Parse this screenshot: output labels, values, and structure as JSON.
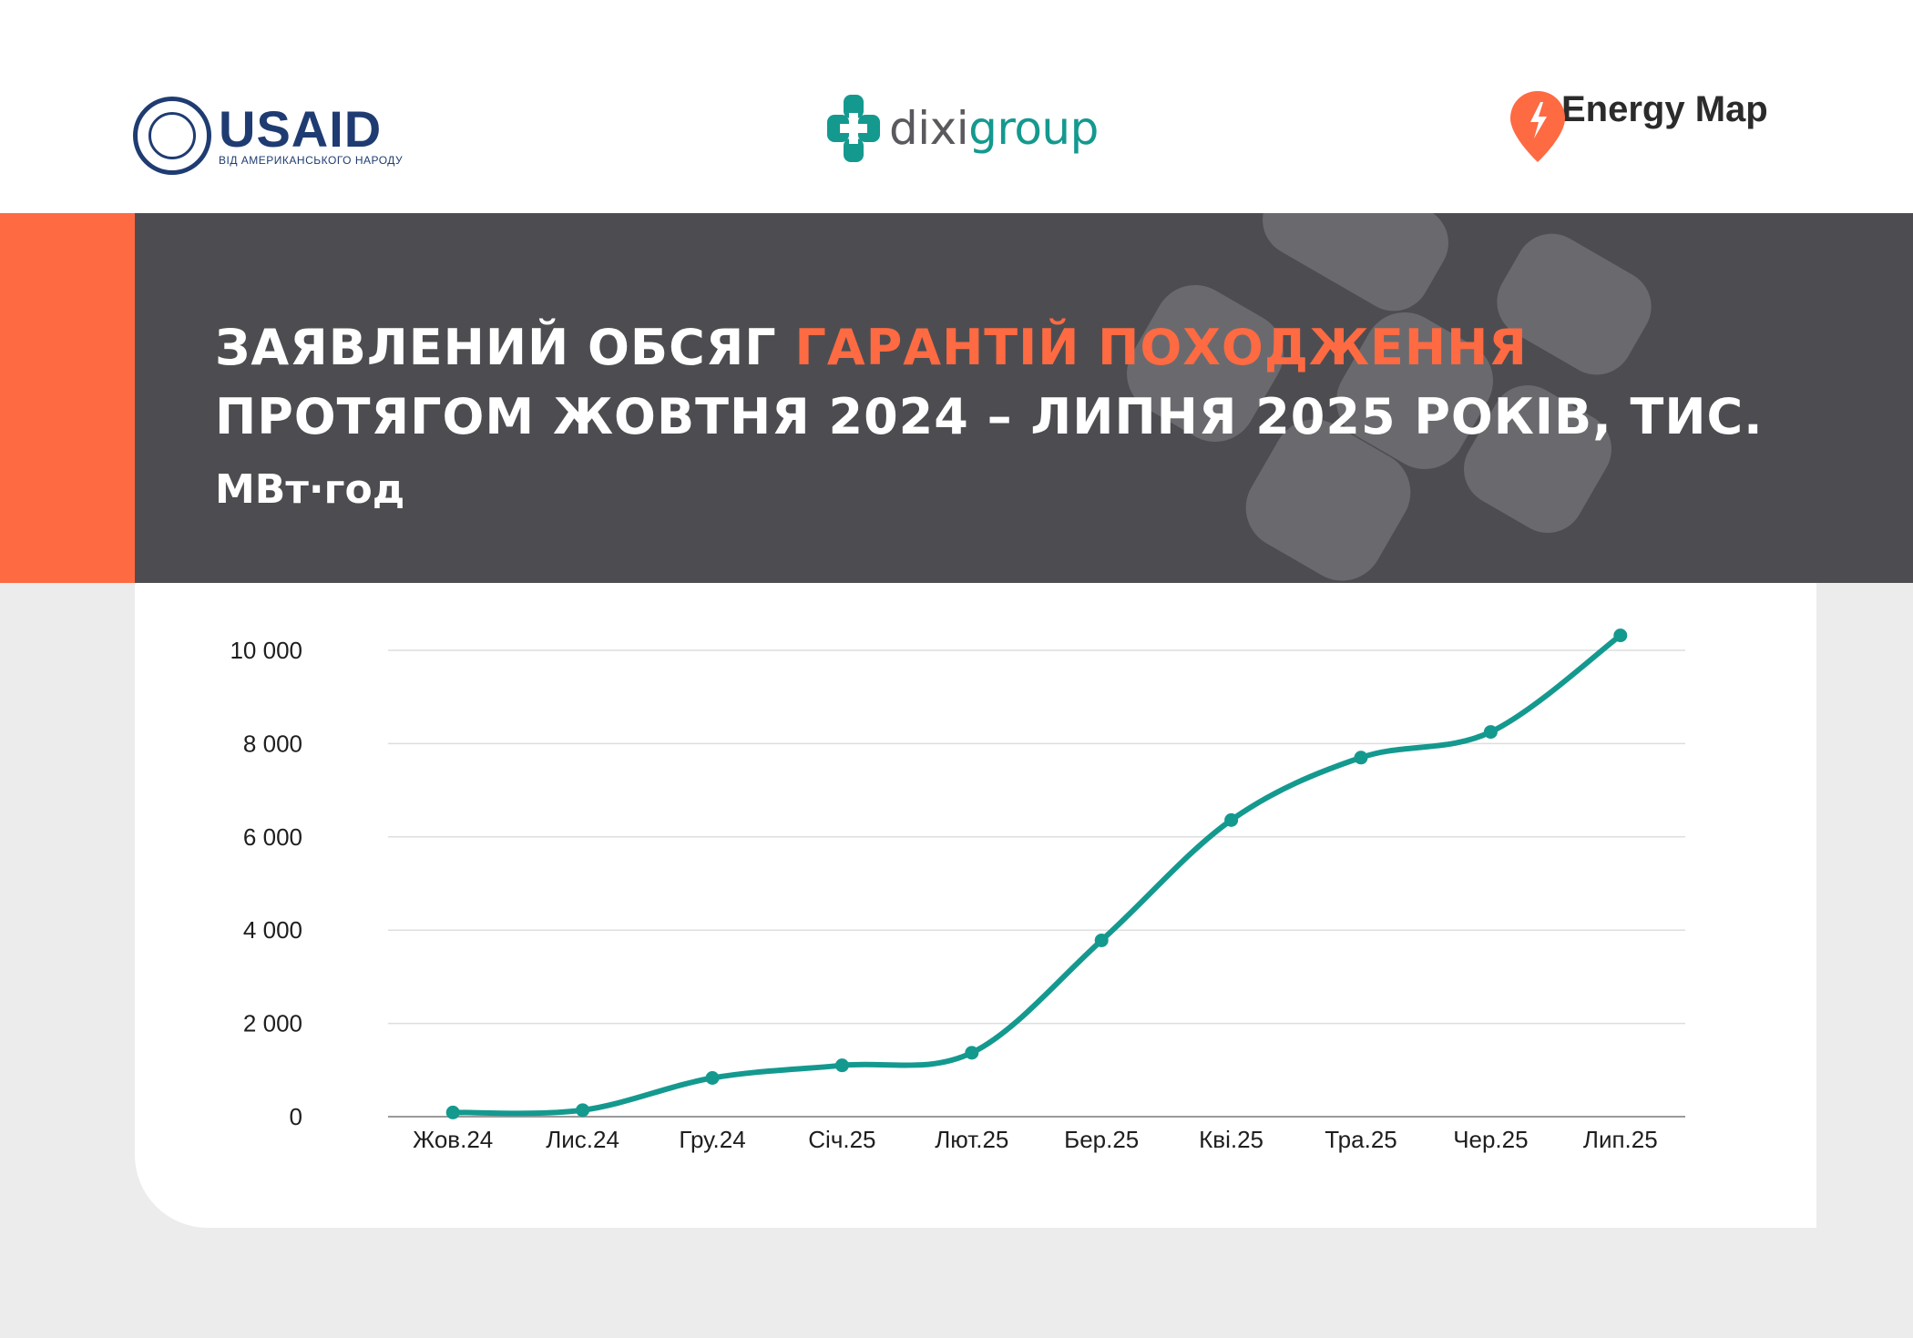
{
  "logos": {
    "usaid": {
      "name": "USAID",
      "tagline": "ВІД АМЕРИКАНСЬКОГО НАРОДУ"
    },
    "dixigroup": {
      "name_part1": "dixi",
      "name_part2": "group"
    },
    "energymap": {
      "name": "Energy Map"
    }
  },
  "colors": {
    "accent_orange": "#fe6a42",
    "banner_dark": "#4d4d51",
    "line_teal": "#14998f"
  },
  "chart_data": {
    "type": "line",
    "title_parts": [
      "ЗАЯВЛЕНИЙ ОБСЯГ ",
      "ГАРАНТІЙ ПОХОДЖЕННЯ",
      " ПРОТЯГОМ ЖОВТНЯ 2024 – ЛИПНЯ 2025 РОКІВ, ТИС. ",
      "МВт·год"
    ],
    "categories": [
      "Жов.24",
      "Лис.24",
      "Гру.24",
      "Січ.25",
      "Лют.25",
      "Бер.25",
      "Кві.25",
      "Тра.25",
      "Чер.25",
      "Лип.25"
    ],
    "values": [
      90,
      140,
      830,
      1100,
      1370,
      3780,
      6360,
      7700,
      8250,
      10320
    ],
    "y_ticks": [
      "0",
      "2 000",
      "4 000",
      "6 000",
      "8 000",
      "10 000"
    ],
    "ylim": [
      0,
      10000
    ],
    "grid": true,
    "legend": "none",
    "smooth": true
  }
}
